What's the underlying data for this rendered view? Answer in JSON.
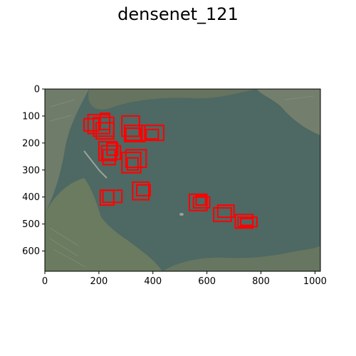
{
  "figure": {
    "title": "densenet_121"
  },
  "image": {
    "description_icon": "aerial-satellite-image-icon",
    "water_color": "#4e6863",
    "land_color": "#6f7c6a",
    "box_color": "#ff0000"
  },
  "axes": {
    "x_ticks": [
      0,
      200,
      400,
      600,
      800,
      1000
    ],
    "y_ticks": [
      0,
      100,
      200,
      300,
      400,
      500,
      600
    ],
    "xlim": [
      0,
      1020
    ],
    "ylim": [
      675,
      0
    ]
  },
  "detections": [
    {
      "x1": 145,
      "y1": 110,
      "x2": 200,
      "y2": 155
    },
    {
      "x1": 160,
      "y1": 95,
      "x2": 240,
      "y2": 165
    },
    {
      "x1": 180,
      "y1": 105,
      "x2": 255,
      "y2": 175
    },
    {
      "x1": 190,
      "y1": 125,
      "x2": 255,
      "y2": 185
    },
    {
      "x1": 205,
      "y1": 90,
      "x2": 240,
      "y2": 150
    },
    {
      "x1": 285,
      "y1": 100,
      "x2": 350,
      "y2": 175
    },
    {
      "x1": 295,
      "y1": 135,
      "x2": 370,
      "y2": 195
    },
    {
      "x1": 300,
      "y1": 145,
      "x2": 355,
      "y2": 190
    },
    {
      "x1": 360,
      "y1": 135,
      "x2": 440,
      "y2": 190
    },
    {
      "x1": 375,
      "y1": 150,
      "x2": 420,
      "y2": 185
    },
    {
      "x1": 200,
      "y1": 195,
      "x2": 265,
      "y2": 265
    },
    {
      "x1": 210,
      "y1": 210,
      "x2": 280,
      "y2": 260
    },
    {
      "x1": 215,
      "y1": 225,
      "x2": 260,
      "y2": 280
    },
    {
      "x1": 230,
      "y1": 200,
      "x2": 270,
      "y2": 245
    },
    {
      "x1": 285,
      "y1": 235,
      "x2": 355,
      "y2": 310
    },
    {
      "x1": 300,
      "y1": 225,
      "x2": 375,
      "y2": 290
    },
    {
      "x1": 305,
      "y1": 255,
      "x2": 345,
      "y2": 300
    },
    {
      "x1": 205,
      "y1": 375,
      "x2": 255,
      "y2": 430
    },
    {
      "x1": 215,
      "y1": 375,
      "x2": 285,
      "y2": 420
    },
    {
      "x1": 325,
      "y1": 345,
      "x2": 385,
      "y2": 410
    },
    {
      "x1": 340,
      "y1": 355,
      "x2": 390,
      "y2": 395
    },
    {
      "x1": 535,
      "y1": 390,
      "x2": 600,
      "y2": 450
    },
    {
      "x1": 550,
      "y1": 400,
      "x2": 610,
      "y2": 440
    },
    {
      "x1": 560,
      "y1": 395,
      "x2": 595,
      "y2": 430
    },
    {
      "x1": 625,
      "y1": 440,
      "x2": 690,
      "y2": 490
    },
    {
      "x1": 640,
      "y1": 430,
      "x2": 700,
      "y2": 475
    },
    {
      "x1": 705,
      "y1": 465,
      "x2": 770,
      "y2": 515
    },
    {
      "x1": 715,
      "y1": 475,
      "x2": 785,
      "y2": 510
    },
    {
      "x1": 725,
      "y1": 480,
      "x2": 770,
      "y2": 505
    }
  ]
}
